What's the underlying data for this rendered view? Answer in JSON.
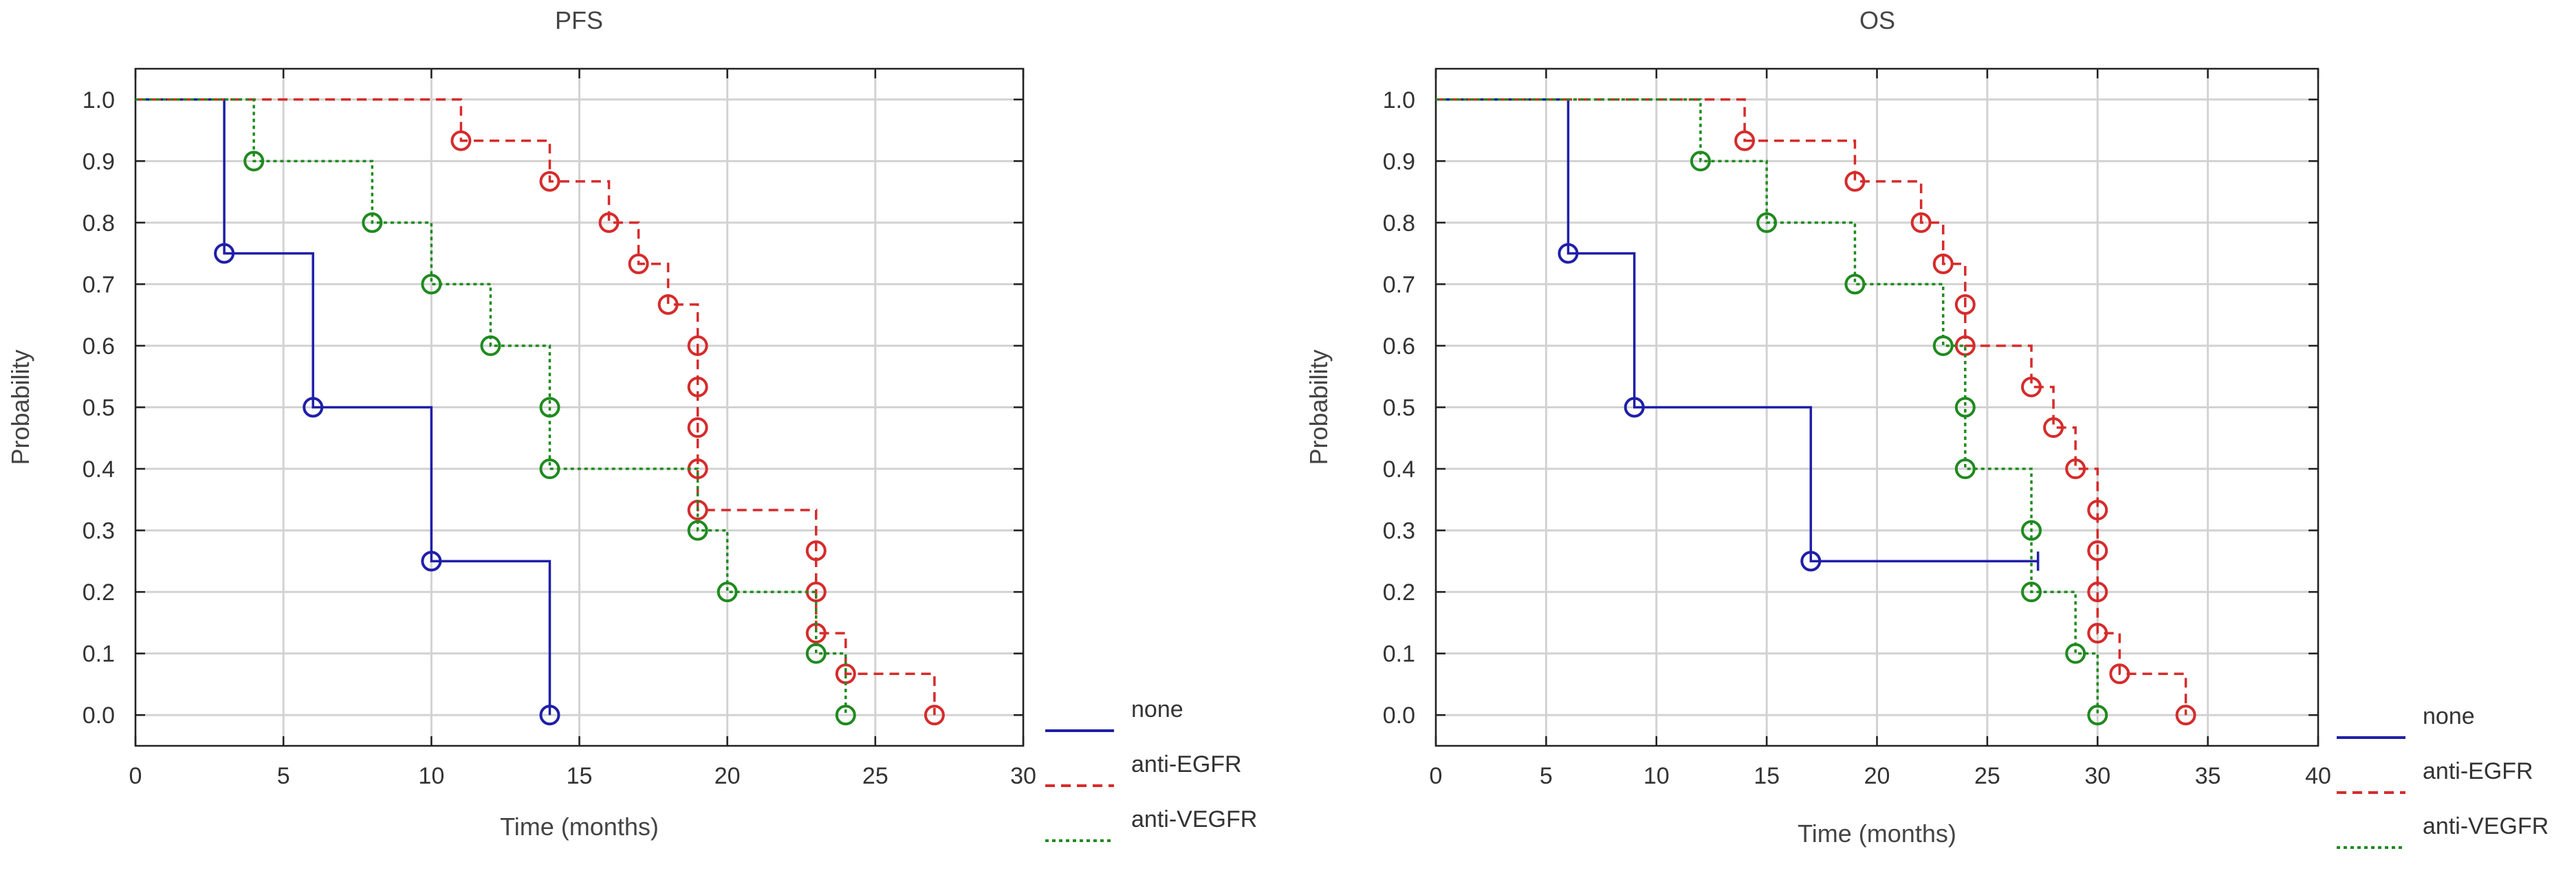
{
  "chart_data": [
    {
      "type": "line",
      "title": "PFS",
      "xlabel": "Time (months)",
      "ylabel": "Probability",
      "xlim": [
        0,
        30
      ],
      "ylim": [
        -0.05,
        1.05
      ],
      "xticks": [
        "0",
        "5",
        "10",
        "15",
        "20",
        "25",
        "30"
      ],
      "yticks": [
        "0.0",
        "0.1",
        "0.2",
        "0.3",
        "0.4",
        "0.5",
        "0.6",
        "0.7",
        "0.8",
        "0.9",
        "1.0"
      ],
      "grid": true,
      "legend_position": "bottom-right outside",
      "series": [
        {
          "name": "none",
          "color": "#1f1fa8",
          "dash": "solid",
          "steps": [
            [
              0,
              1.0
            ],
            [
              3,
              0.75
            ],
            [
              6,
              0.5
            ],
            [
              10,
              0.25
            ],
            [
              14,
              0.0
            ]
          ],
          "markers": [
            [
              3,
              0.75
            ],
            [
              6,
              0.5
            ],
            [
              10,
              0.25
            ],
            [
              14,
              0.0
            ]
          ]
        },
        {
          "name": "anti-EGFR",
          "color": "#d62b2b",
          "dash": "dashed",
          "steps": [
            [
              0,
              1.0
            ],
            [
              11,
              0.933
            ],
            [
              14,
              0.867
            ],
            [
              16,
              0.8
            ],
            [
              17,
              0.733
            ],
            [
              18,
              0.667
            ],
            [
              19,
              0.333
            ],
            [
              23,
              0.133
            ],
            [
              24,
              0.067
            ],
            [
              27,
              0.0
            ]
          ],
          "markers": [
            [
              11,
              0.933
            ],
            [
              14,
              0.867
            ],
            [
              16,
              0.8
            ],
            [
              17,
              0.733
            ],
            [
              18,
              0.667
            ],
            [
              19,
              0.6
            ],
            [
              19,
              0.533
            ],
            [
              19,
              0.467
            ],
            [
              19,
              0.4
            ],
            [
              19,
              0.333
            ],
            [
              23,
              0.267
            ],
            [
              23,
              0.2
            ],
            [
              23,
              0.133
            ],
            [
              24,
              0.067
            ],
            [
              27,
              0.0
            ]
          ]
        },
        {
          "name": "anti-VEGFR",
          "color": "#1f8a1f",
          "dash": "dotted",
          "steps": [
            [
              0,
              1.0
            ],
            [
              4,
              0.9
            ],
            [
              8,
              0.8
            ],
            [
              10,
              0.7
            ],
            [
              12,
              0.6
            ],
            [
              14,
              0.4
            ],
            [
              19,
              0.3
            ],
            [
              20,
              0.2
            ],
            [
              23,
              0.1
            ],
            [
              24,
              0.0
            ]
          ],
          "markers": [
            [
              4,
              0.9
            ],
            [
              8,
              0.8
            ],
            [
              10,
              0.7
            ],
            [
              12,
              0.6
            ],
            [
              14,
              0.5
            ],
            [
              14,
              0.4
            ],
            [
              19,
              0.3
            ],
            [
              20,
              0.2
            ],
            [
              23,
              0.1
            ],
            [
              24,
              0.0
            ]
          ]
        }
      ]
    },
    {
      "type": "line",
      "title": "OS",
      "xlabel": "Time (months)",
      "ylabel": "Probability",
      "xlim": [
        0,
        40
      ],
      "ylim": [
        -0.05,
        1.05
      ],
      "xticks": [
        "0",
        "5",
        "10",
        "15",
        "20",
        "25",
        "30",
        "35",
        "40"
      ],
      "yticks": [
        "0.0",
        "0.1",
        "0.2",
        "0.3",
        "0.4",
        "0.5",
        "0.6",
        "0.7",
        "0.8",
        "0.9",
        "1.0"
      ],
      "grid": true,
      "legend_position": "bottom-right outside",
      "series": [
        {
          "name": "none",
          "color": "#1f1fa8",
          "dash": "solid",
          "steps": [
            [
              0,
              1.0
            ],
            [
              6,
              0.75
            ],
            [
              9,
              0.5
            ],
            [
              17,
              0.25
            ],
            [
              27.3,
              0.25
            ]
          ],
          "censored": [
            [
              27.3,
              0.25
            ]
          ],
          "markers": [
            [
              6,
              0.75
            ],
            [
              9,
              0.5
            ],
            [
              17,
              0.25
            ]
          ]
        },
        {
          "name": "anti-EGFR",
          "color": "#d62b2b",
          "dash": "dashed",
          "steps": [
            [
              0,
              1.0
            ],
            [
              14,
              0.933
            ],
            [
              19,
              0.867
            ],
            [
              22,
              0.8
            ],
            [
              23,
              0.733
            ],
            [
              24,
              0.6
            ],
            [
              27,
              0.533
            ],
            [
              28,
              0.467
            ],
            [
              29,
              0.4
            ],
            [
              30,
              0.133
            ],
            [
              31,
              0.067
            ],
            [
              34,
              0.0
            ]
          ],
          "markers": [
            [
              14,
              0.933
            ],
            [
              19,
              0.867
            ],
            [
              22,
              0.8
            ],
            [
              23,
              0.733
            ],
            [
              24,
              0.667
            ],
            [
              24,
              0.6
            ],
            [
              27,
              0.533
            ],
            [
              28,
              0.467
            ],
            [
              29,
              0.4
            ],
            [
              30,
              0.333
            ],
            [
              30,
              0.267
            ],
            [
              30,
              0.2
            ],
            [
              30,
              0.133
            ],
            [
              31,
              0.067
            ],
            [
              34,
              0.0
            ]
          ]
        },
        {
          "name": "anti-VEGFR",
          "color": "#1f8a1f",
          "dash": "dotted",
          "steps": [
            [
              0,
              1.0
            ],
            [
              12,
              0.9
            ],
            [
              15,
              0.8
            ],
            [
              19,
              0.7
            ],
            [
              23,
              0.6
            ],
            [
              24,
              0.4
            ],
            [
              27,
              0.2
            ],
            [
              29,
              0.1
            ],
            [
              30,
              0.0
            ]
          ],
          "markers": [
            [
              12,
              0.9
            ],
            [
              15,
              0.8
            ],
            [
              19,
              0.7
            ],
            [
              23,
              0.6
            ],
            [
              24,
              0.5
            ],
            [
              24,
              0.4
            ],
            [
              27,
              0.3
            ],
            [
              27,
              0.2
            ],
            [
              29,
              0.1
            ],
            [
              30,
              0.0
            ]
          ]
        }
      ]
    }
  ]
}
